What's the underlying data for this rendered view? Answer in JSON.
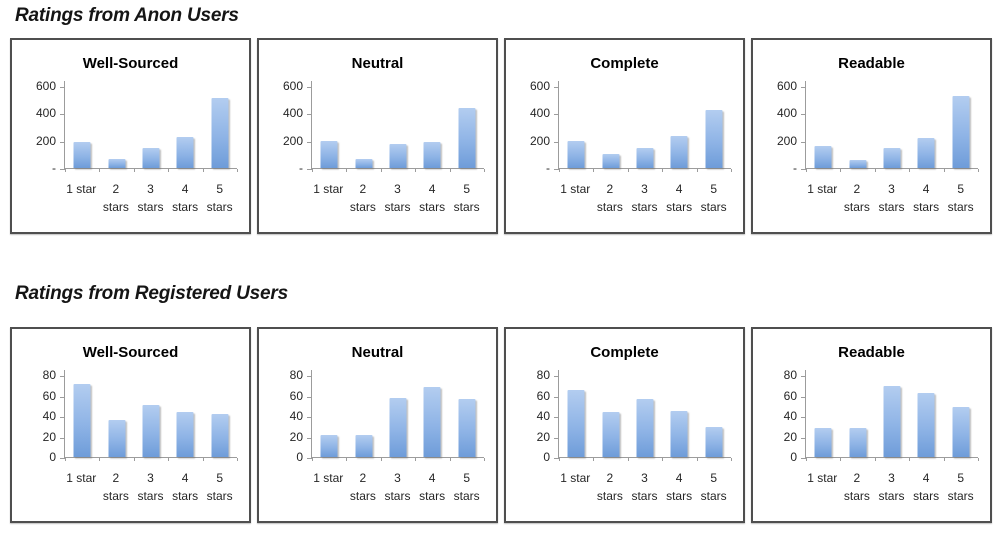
{
  "style": {
    "bar_gradient_top": "#B3CDF0",
    "bar_gradient_mid": "#8FB4E6",
    "bar_gradient_bottom": "#6E9CD9",
    "axis_line_color": "#9c9c9c",
    "panel_border_color": "#4f4f4f",
    "text_color": "#151515",
    "background_color": "#ffffff"
  },
  "x_axis": {
    "categories": [
      "1 star",
      "2 stars",
      "3 stars",
      "4 stars",
      "5 stars"
    ],
    "category_lines": [
      [
        "1 star",
        ""
      ],
      [
        "2",
        "stars"
      ],
      [
        "3",
        "stars"
      ],
      [
        "4",
        "stars"
      ],
      [
        "5",
        "stars"
      ]
    ]
  },
  "sections": [
    {
      "heading": "Ratings from Anon Users",
      "y_axis": {
        "ymax_plot": 640,
        "ticks": [
          {
            "value": 600,
            "label": "600"
          },
          {
            "value": 400,
            "label": "400"
          },
          {
            "value": 200,
            "label": "200"
          },
          {
            "value": 0,
            "label": "-"
          }
        ]
      }
    },
    {
      "heading": "Ratings from Registered Users",
      "y_axis": {
        "ymax_plot": 86,
        "ticks": [
          {
            "value": 80,
            "label": "80"
          },
          {
            "value": 60,
            "label": "60"
          },
          {
            "value": 40,
            "label": "40"
          },
          {
            "value": 20,
            "label": "20"
          },
          {
            "value": 0,
            "label": "0"
          }
        ]
      }
    }
  ],
  "chart_data": [
    {
      "id": "anon-well-sourced",
      "section": 0,
      "type": "bar",
      "title": "Well-Sourced",
      "categories": [
        "1 star",
        "2 stars",
        "3 stars",
        "4 stars",
        "5 stars"
      ],
      "values": [
        190,
        65,
        145,
        225,
        510
      ],
      "ylim": [
        0,
        640
      ],
      "ytick_labels": [
        "600",
        "400",
        "200",
        "-"
      ],
      "grid": false,
      "legend": false
    },
    {
      "id": "anon-neutral",
      "section": 0,
      "type": "bar",
      "title": "Neutral",
      "categories": [
        "1 star",
        "2 stars",
        "3 stars",
        "4 stars",
        "5 stars"
      ],
      "values": [
        195,
        65,
        175,
        190,
        440
      ],
      "ylim": [
        0,
        640
      ],
      "ytick_labels": [
        "600",
        "400",
        "200",
        "-"
      ],
      "grid": false,
      "legend": false
    },
    {
      "id": "anon-complete",
      "section": 0,
      "type": "bar",
      "title": "Complete",
      "categories": [
        "1 star",
        "2 stars",
        "3 stars",
        "4 stars",
        "5 stars"
      ],
      "values": [
        200,
        100,
        145,
        235,
        420
      ],
      "ylim": [
        0,
        640
      ],
      "ytick_labels": [
        "600",
        "400",
        "200",
        "-"
      ],
      "grid": false,
      "legend": false
    },
    {
      "id": "anon-readable",
      "section": 0,
      "type": "bar",
      "title": "Readable",
      "categories": [
        "1 star",
        "2 stars",
        "3 stars",
        "4 stars",
        "5 stars"
      ],
      "values": [
        160,
        60,
        145,
        220,
        525
      ],
      "ylim": [
        0,
        640
      ],
      "ytick_labels": [
        "600",
        "400",
        "200",
        "-"
      ],
      "grid": false,
      "legend": false
    },
    {
      "id": "registered-well-sourced",
      "section": 1,
      "type": "bar",
      "title": "Well-Sourced",
      "categories": [
        "1 star",
        "2 stars",
        "3 stars",
        "4 stars",
        "5 stars"
      ],
      "values": [
        71,
        36,
        51,
        44,
        42
      ],
      "ylim": [
        0,
        86
      ],
      "ytick_labels": [
        "80",
        "60",
        "40",
        "20",
        "0"
      ],
      "grid": false,
      "legend": false
    },
    {
      "id": "registered-neutral",
      "section": 1,
      "type": "bar",
      "title": "Neutral",
      "categories": [
        "1 star",
        "2 stars",
        "3 stars",
        "4 stars",
        "5 stars"
      ],
      "values": [
        22,
        22,
        58,
        68,
        57
      ],
      "ylim": [
        0,
        86
      ],
      "ytick_labels": [
        "80",
        "60",
        "40",
        "20",
        "0"
      ],
      "grid": false,
      "legend": false
    },
    {
      "id": "registered-complete",
      "section": 1,
      "type": "bar",
      "title": "Complete",
      "categories": [
        "1 star",
        "2 stars",
        "3 stars",
        "4 stars",
        "5 stars"
      ],
      "values": [
        66,
        44,
        57,
        45,
        29
      ],
      "ylim": [
        0,
        86
      ],
      "ytick_labels": [
        "80",
        "60",
        "40",
        "20",
        "0"
      ],
      "grid": false,
      "legend": false
    },
    {
      "id": "registered-readable",
      "section": 1,
      "type": "bar",
      "title": "Readable",
      "categories": [
        "1 star",
        "2 stars",
        "3 stars",
        "4 stars",
        "5 stars"
      ],
      "values": [
        28,
        28,
        69,
        63,
        49
      ],
      "ylim": [
        0,
        86
      ],
      "ytick_labels": [
        "80",
        "60",
        "40",
        "20",
        "0"
      ],
      "grid": false,
      "legend": false
    }
  ]
}
